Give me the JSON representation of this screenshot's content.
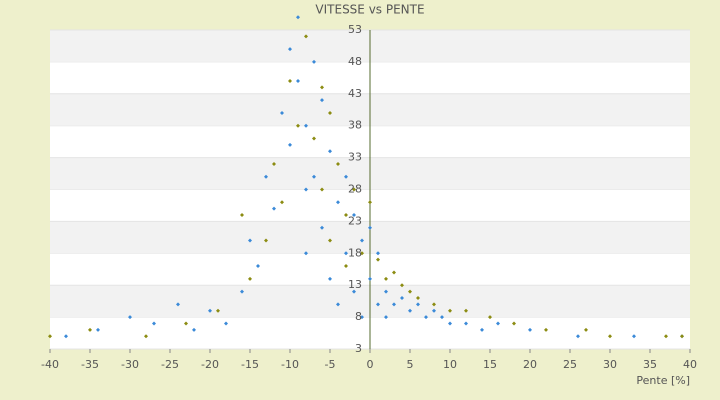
{
  "chart_data": {
    "type": "scatter",
    "title": "VITESSE vs PENTE",
    "x_label": "Pente [%]",
    "xlim": [
      -40,
      40
    ],
    "xticks": [
      -40,
      -35,
      -30,
      -25,
      -20,
      -15,
      -10,
      -5,
      0,
      5,
      10,
      15,
      20,
      25,
      30,
      35,
      40
    ],
    "ylim": [
      3,
      53
    ],
    "yticks": [
      3,
      8,
      13,
      18,
      23,
      28,
      33,
      38,
      43,
      48,
      53
    ],
    "grid": true,
    "series": [
      {
        "color": "#3b8ad8",
        "x": [
          -38,
          -34,
          -30,
          -27,
          -24,
          -22,
          -20,
          -18,
          -16,
          -15,
          -14,
          -13,
          -12,
          -11,
          -10,
          -10,
          -9,
          -9,
          -8,
          -8,
          -8,
          -7,
          -7,
          -6,
          -6,
          -5,
          -5,
          -4,
          -4,
          -3,
          -3,
          -2,
          -2,
          -1,
          -1,
          0,
          0,
          1,
          1,
          2,
          2,
          3,
          4,
          5,
          6,
          7,
          8,
          9,
          10,
          12,
          14,
          16,
          20,
          26,
          33,
          39
        ],
        "y": [
          5,
          6,
          8,
          7,
          10,
          6,
          9,
          7,
          12,
          20,
          16,
          30,
          25,
          40,
          50,
          35,
          55,
          45,
          38,
          28,
          18,
          48,
          30,
          42,
          22,
          34,
          14,
          26,
          10,
          30,
          18,
          24,
          12,
          20,
          8,
          22,
          14,
          18,
          10,
          12,
          8,
          10,
          11,
          9,
          10,
          8,
          9,
          8,
          7,
          7,
          6,
          7,
          6,
          5,
          5,
          5
        ]
      },
      {
        "color": "#8c8c12",
        "x": [
          -40,
          -35,
          -28,
          -23,
          -19,
          -16,
          -15,
          -13,
          -12,
          -11,
          -10,
          -9,
          -8,
          -7,
          -6,
          -6,
          -5,
          -5,
          -4,
          -3,
          -3,
          -2,
          -1,
          0,
          1,
          2,
          3,
          4,
          5,
          6,
          8,
          10,
          12,
          15,
          18,
          22,
          27,
          30,
          37,
          39
        ],
        "y": [
          5,
          6,
          5,
          7,
          9,
          24,
          14,
          20,
          32,
          26,
          45,
          38,
          52,
          36,
          44,
          28,
          40,
          20,
          32,
          24,
          16,
          28,
          18,
          26,
          17,
          14,
          15,
          13,
          12,
          11,
          10,
          9,
          9,
          8,
          7,
          6,
          6,
          5,
          5,
          5
        ]
      }
    ]
  }
}
